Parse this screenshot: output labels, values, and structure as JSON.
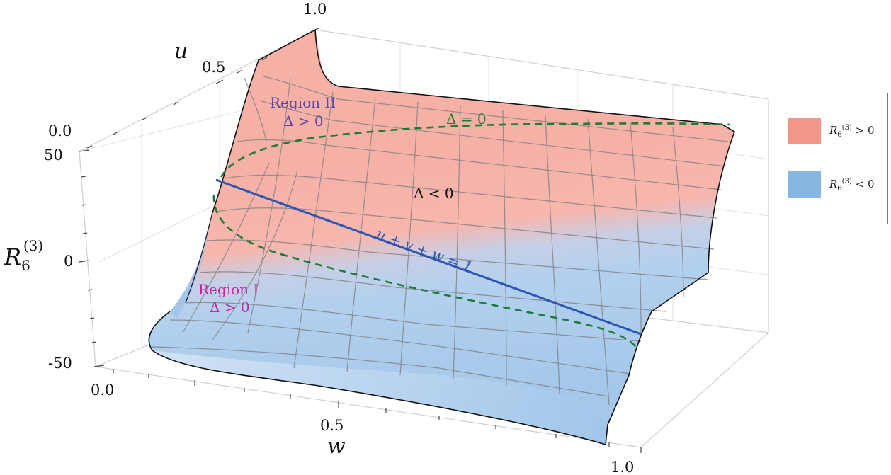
{
  "chart_data": {
    "type": "surface3d",
    "z_axis": {
      "label_base": "R",
      "label_sub": "6",
      "label_sup": "(3)",
      "ticks": [
        "50",
        "0",
        "-50"
      ],
      "range": [
        -50,
        50
      ]
    },
    "u_axis": {
      "label": "u",
      "ticks": [
        "0.0",
        "0.5",
        "1.0"
      ],
      "range": [
        0,
        1
      ]
    },
    "w_axis": {
      "label": "w",
      "ticks": [
        "0.0",
        "0.5",
        "1.0"
      ],
      "range": [
        0,
        1
      ]
    },
    "legend": [
      {
        "label_base": "R",
        "label_sub": "6",
        "label_sup": "(3)",
        "relation": "> 0",
        "color": "#f4968a"
      },
      {
        "label_base": "R",
        "label_sub": "6",
        "label_sup": "(3)",
        "relation": "< 0",
        "color": "#86b6e2"
      }
    ],
    "annotations": {
      "region2_title": "Region II",
      "region2_cond": "Δ > 0",
      "region1_title": "Region I",
      "region1_cond": "Δ > 0",
      "delta_zero": "Δ = 0",
      "delta_neg": "Δ < 0",
      "plane": "u + v + w = 1"
    },
    "colors": {
      "positive": "#f4968a",
      "negative": "#86b6e2",
      "delta_zero_curve": "#1e7a35",
      "plane_line": "#2b55b0",
      "region1": "#c02a9a",
      "region2": "#5c46a8"
    }
  }
}
